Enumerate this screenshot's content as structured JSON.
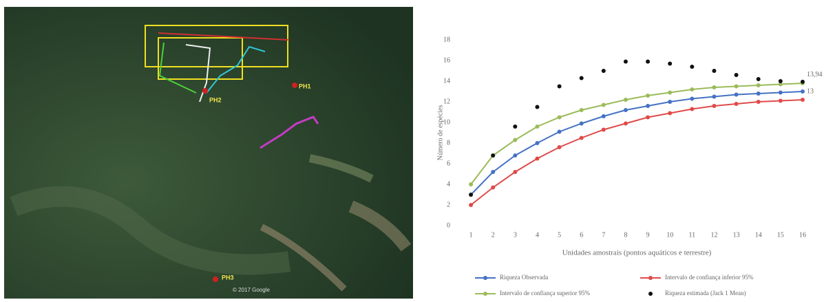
{
  "map": {
    "labels": [
      "PH1",
      "PH2",
      "PH3"
    ],
    "credit": "© 2017 Google"
  },
  "chart_data": {
    "type": "line",
    "y_label": "Número de espécies",
    "x_label": "Unidades amostrais (pontos aquáticos e terrestre)",
    "categories": [
      "1",
      "2",
      "3",
      "4",
      "5",
      "6",
      "7",
      "8",
      "9",
      "10",
      "11",
      "12",
      "13",
      "14",
      "15",
      "16"
    ],
    "ylim": [
      0,
      18
    ],
    "yticks": [
      0,
      2,
      4,
      6,
      8,
      10,
      12,
      14,
      16,
      18
    ],
    "grid": false,
    "legend": "bottom",
    "series": [
      {
        "name": "Riqueza Observada",
        "color": "#4472c4",
        "mode": "lines+markers",
        "values": [
          3,
          5.2,
          6.8,
          8,
          9.1,
          9.9,
          10.6,
          11.2,
          11.6,
          12.0,
          12.3,
          12.5,
          12.7,
          12.8,
          12.9,
          13
        ],
        "value_labels": [
          null,
          null,
          null,
          null,
          null,
          null,
          null,
          null,
          null,
          null,
          null,
          null,
          null,
          null,
          null,
          "13"
        ]
      },
      {
        "name": "Intervalo de confiança inferior 95%",
        "color": "#e04a4a",
        "mode": "lines+markers",
        "values": [
          2,
          3.7,
          5.2,
          6.5,
          7.6,
          8.5,
          9.3,
          9.9,
          10.5,
          10.9,
          11.3,
          11.6,
          11.8,
          12.0,
          12.1,
          12.2
        ]
      },
      {
        "name": "Intervalo de confiança superior 95%",
        "color": "#9bbb59",
        "mode": "lines+markers",
        "values": [
          4,
          6.8,
          8.3,
          9.6,
          10.5,
          11.2,
          11.7,
          12.2,
          12.6,
          12.9,
          13.2,
          13.4,
          13.5,
          13.6,
          13.7,
          13.8
        ]
      },
      {
        "name": "Riqueza estimada (Jack 1 Mean)",
        "color": "#111111",
        "mode": "markers",
        "values": [
          3,
          6.8,
          9.6,
          11.5,
          13.5,
          14.3,
          15,
          15.9,
          15.9,
          15.7,
          15.4,
          15,
          14.6,
          14.2,
          14,
          13.94
        ],
        "value_labels": [
          null,
          null,
          null,
          null,
          null,
          null,
          null,
          null,
          null,
          null,
          null,
          null,
          null,
          null,
          null,
          "13,94"
        ]
      }
    ]
  }
}
